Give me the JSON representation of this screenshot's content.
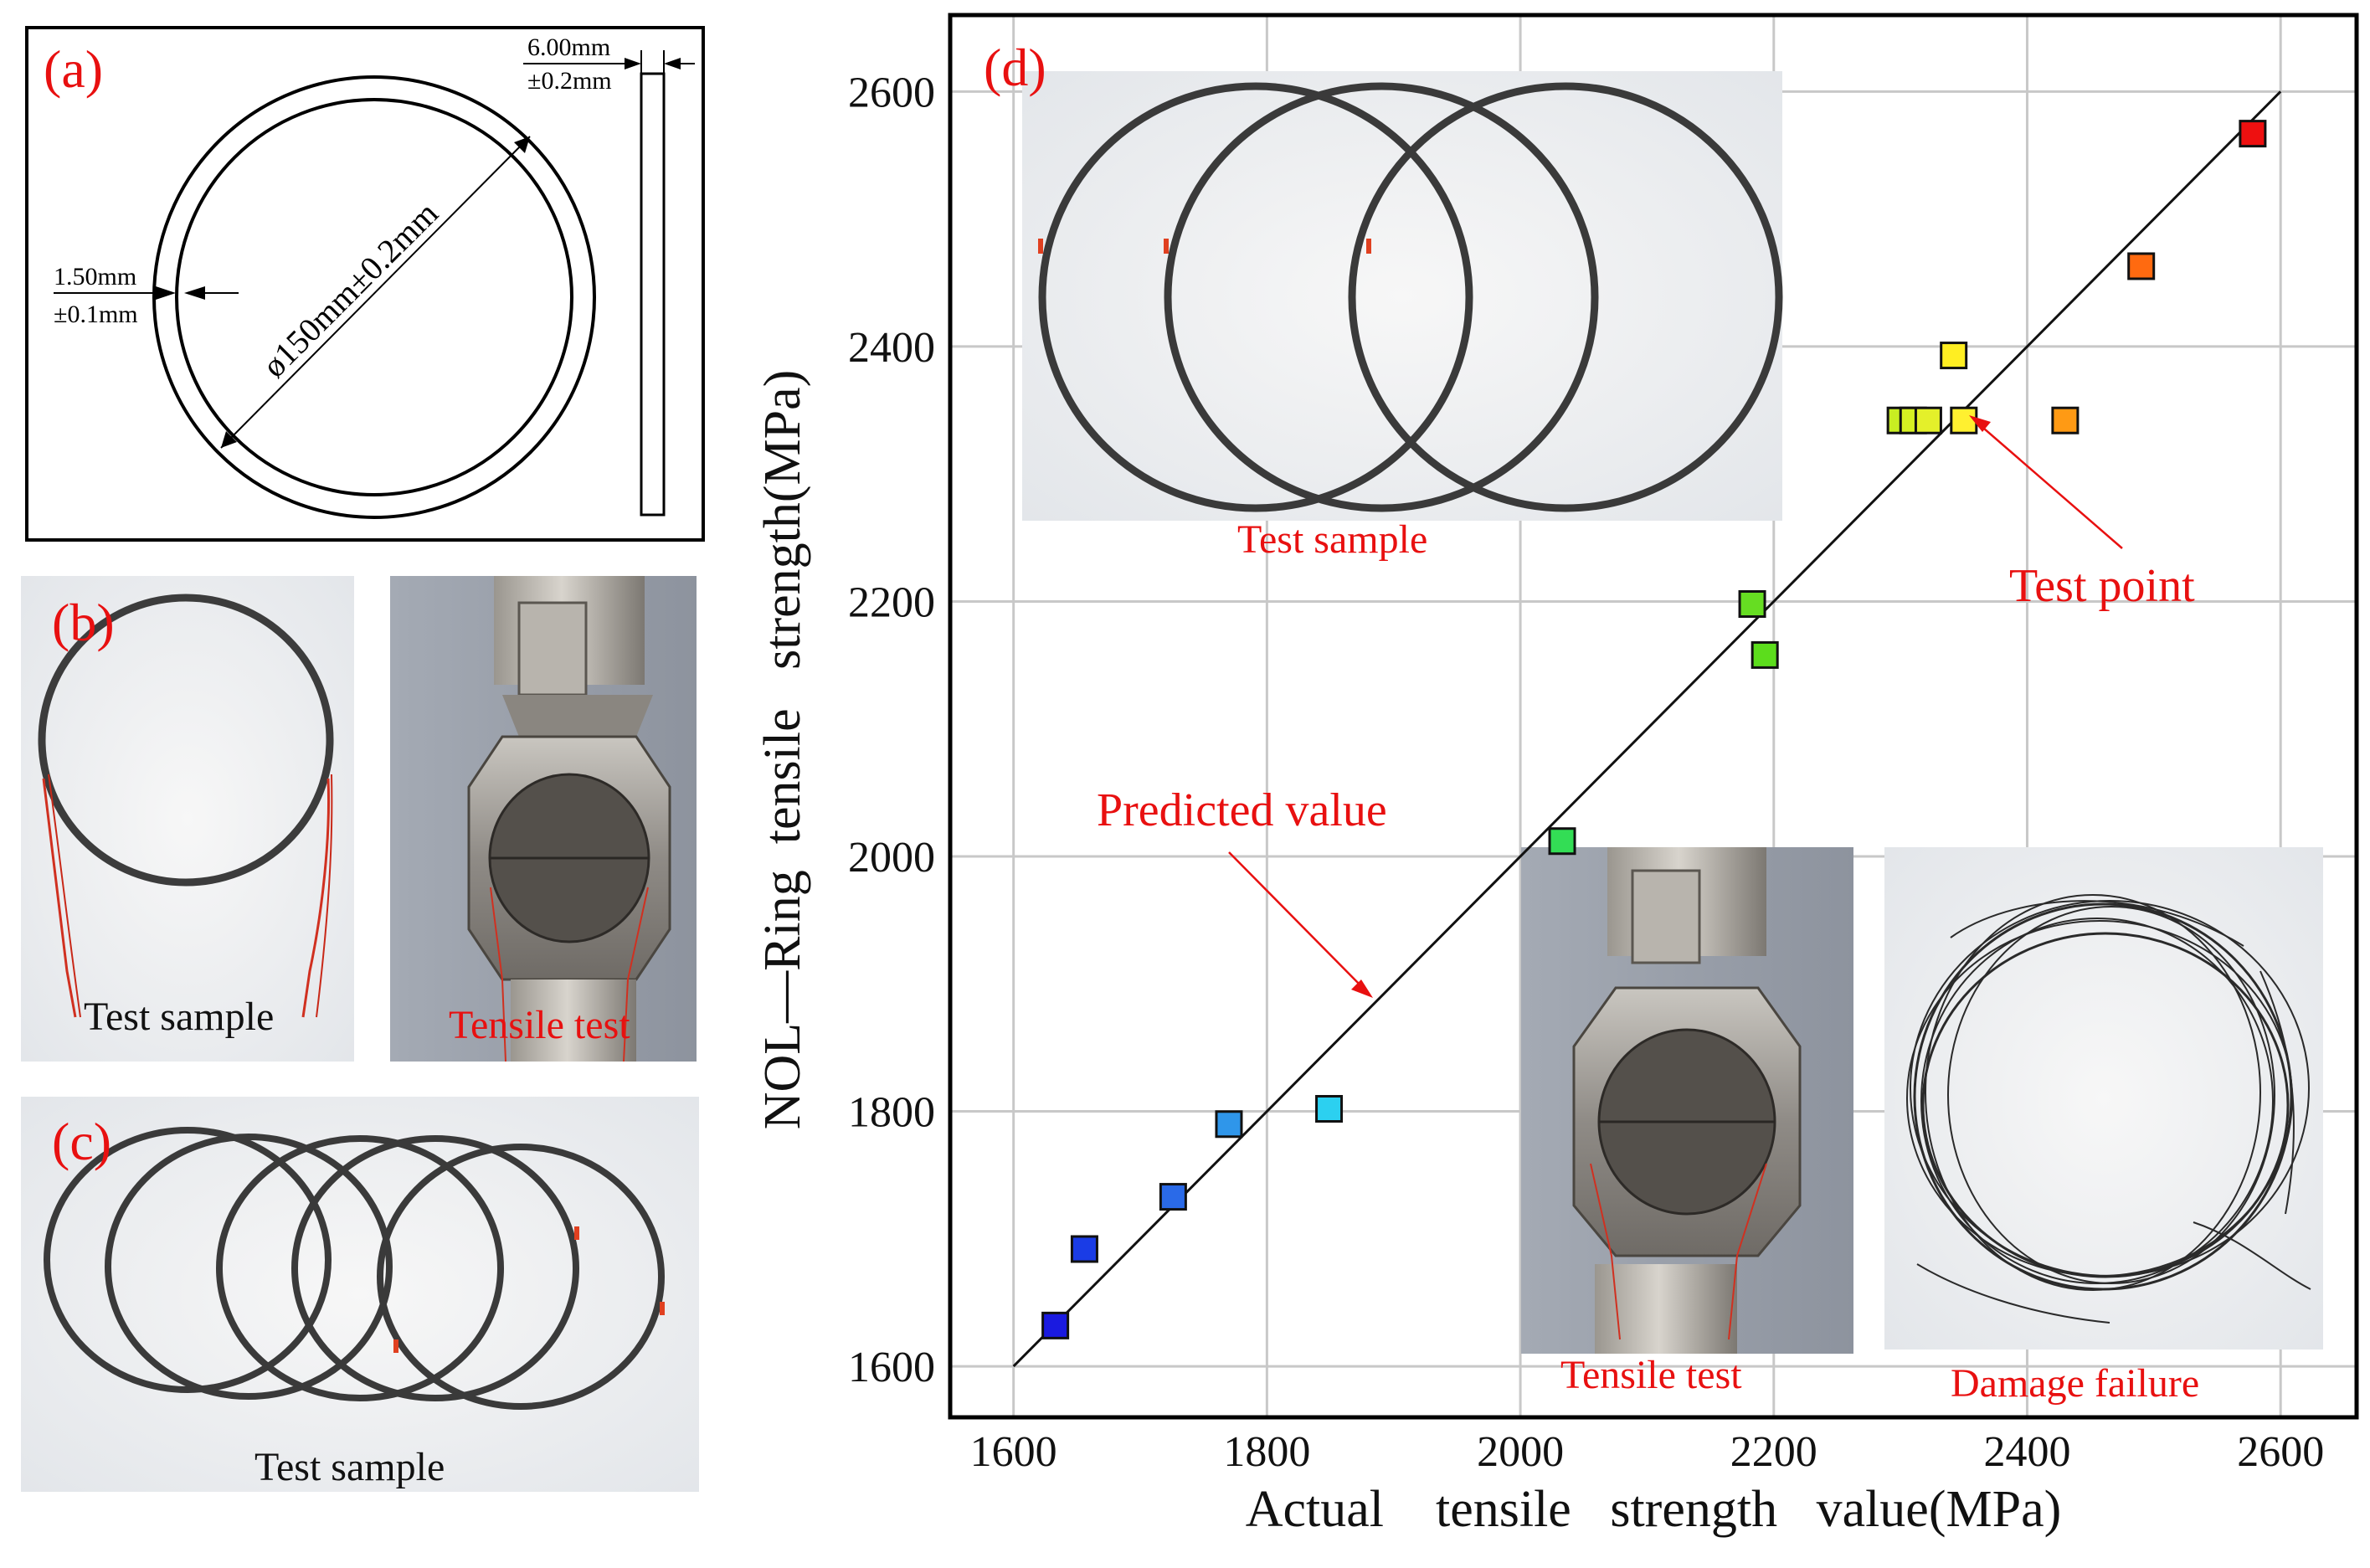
{
  "panel_a": {
    "label": "(a)",
    "thickness_value": "6.00mm",
    "thickness_tol": "±0.2mm",
    "wall_value": "1.50mm",
    "wall_tol": "±0.1mm",
    "diameter": "ø150mm±0.2mm"
  },
  "panel_b": {
    "label": "(b)",
    "sample_caption": "Test sample",
    "tensile_caption": "Tensile test"
  },
  "panel_c": {
    "label": "(c)",
    "sample_caption": "Test sample"
  },
  "panel_d": {
    "label": "(d)",
    "inset_sample_caption": "Test sample",
    "inset_tensile_caption": "Tensile test",
    "inset_damage_caption": "Damage failure",
    "annotation_test_point": "Test point",
    "annotation_predicted": "Predicted value"
  },
  "colors": {
    "accent_red": "#e81010",
    "frame": "#000000",
    "grid": "#c8c8c8"
  },
  "chart_data": {
    "type": "scatter",
    "title": "",
    "xlabel": "Actual    tensile   strength   value(MPa)",
    "ylabel": "NOL—Ring  tensile   strength(MPa)",
    "xlim": [
      1550,
      2660
    ],
    "ylim": [
      1560,
      2660
    ],
    "x_ticks": [
      1600,
      1800,
      2000,
      2200,
      2400,
      2600
    ],
    "y_ticks": [
      1600,
      1800,
      2000,
      2200,
      2400,
      2600
    ],
    "x_tick_labels": [
      "1600",
      "1800",
      "2000",
      "2200",
      "2400",
      "2600"
    ],
    "y_tick_labels": [
      "1600",
      "1800",
      "2000",
      "2200",
      "2400",
      "2600"
    ],
    "grid": true,
    "reference_line": {
      "name": "Predicted value",
      "x": [
        1600,
        2600
      ],
      "y": [
        1600,
        2600
      ]
    },
    "points": [
      {
        "x": 1633,
        "y": 1632,
        "color": "#1a1ae0"
      },
      {
        "x": 1656,
        "y": 1692,
        "color": "#1a3ce6"
      },
      {
        "x": 1726,
        "y": 1733,
        "color": "#2a6ae8"
      },
      {
        "x": 1770,
        "y": 1790,
        "color": "#2f96ea"
      },
      {
        "x": 1849,
        "y": 1802,
        "color": "#2cd0f0"
      },
      {
        "x": 2033,
        "y": 2012,
        "color": "#33dd55"
      },
      {
        "x": 2183,
        "y": 2198,
        "color": "#66dd22"
      },
      {
        "x": 2193,
        "y": 2158,
        "color": "#5cdd1c"
      },
      {
        "x": 2300,
        "y": 2342,
        "color": "#c8ee22"
      },
      {
        "x": 2310,
        "y": 2342,
        "color": "#d6f022"
      },
      {
        "x": 2322,
        "y": 2342,
        "color": "#e4f02a"
      },
      {
        "x": 2342,
        "y": 2393,
        "color": "#ffee22"
      },
      {
        "x": 2350,
        "y": 2342,
        "color": "#fff030"
      },
      {
        "x": 2430,
        "y": 2342,
        "color": "#ff9a14"
      },
      {
        "x": 2490,
        "y": 2463,
        "color": "#ff6a10"
      },
      {
        "x": 2578,
        "y": 2567,
        "color": "#ee1010"
      }
    ]
  }
}
